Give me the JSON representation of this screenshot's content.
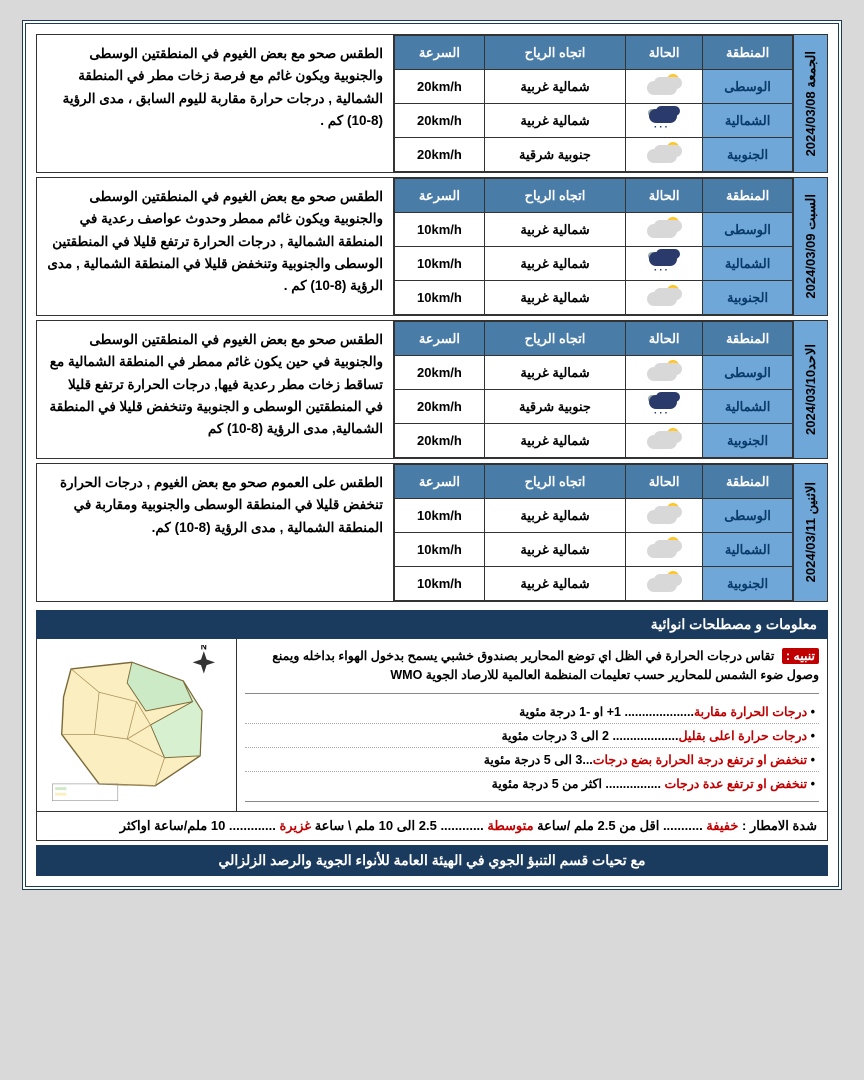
{
  "headers": {
    "region": "المنطقة",
    "condition": "الحالة",
    "wind": "اتجاه الرياح",
    "speed": "السرعة"
  },
  "regions": {
    "c": "الوسطى",
    "n": "الشمالية",
    "s": "الجنوبية"
  },
  "days": [
    {
      "date": "الجمعة 2024/03/08",
      "desc": "الطقس صحو مع بعض الغيوم في المنطقتين الوسطى والجنوبية ويكون غائم مع فرصة زخات مطر في المنطقة الشمالية , درجات حرارة مقاربة لليوم السابق ، مدى الرؤية (8-10) كم .",
      "rows": [
        {
          "r": "c",
          "icon": "sun",
          "wind": "شمالية غربية",
          "spd": "20km/h"
        },
        {
          "r": "n",
          "icon": "rain",
          "wind": "شمالية غربية",
          "spd": "20km/h"
        },
        {
          "r": "s",
          "icon": "sun",
          "wind": "جنوبية شرقية",
          "spd": "20km/h"
        }
      ]
    },
    {
      "date": "السبت 2024/03/09",
      "desc": "الطقس صحو مع بعض الغيوم  في المنطقتين الوسطى والجنوبية ويكون غائم ممطر وحدوث عواصف رعدية في المنطقة الشمالية , درجات الحرارة ترتفع قليلا  في المنطقتين الوسطى والجنوبية  وتنخفض قليلا في المنطقة الشمالية  , مدى الرؤية (8-10) كم .",
      "rows": [
        {
          "r": "c",
          "icon": "sun",
          "wind": "شمالية غربية",
          "spd": "10km/h"
        },
        {
          "r": "n",
          "icon": "rain",
          "wind": "شمالية غربية",
          "spd": "10km/h"
        },
        {
          "r": "s",
          "icon": "sun",
          "wind": "شمالية غربية",
          "spd": "10km/h"
        }
      ]
    },
    {
      "date": "الاحد2024/03/10",
      "desc": "الطقس صحو مع بعض الغيوم  في المنطقتين الوسطى والجنوبية في حين يكون غائم ممطر في المنطقة الشمالية مع تساقط زخات مطر رعدية فيها, درجات الحرارة ترتفع قليلا في المنطقتين الوسطى و الجنوبية وتنخفض قليلا في المنطقة الشمالية, مدى الرؤية (8-10) كم",
      "rows": [
        {
          "r": "c",
          "icon": "sun",
          "wind": "شمالية غربية",
          "spd": "20km/h"
        },
        {
          "r": "n",
          "icon": "rain",
          "wind": "جنوبية شرقية",
          "spd": "20km/h"
        },
        {
          "r": "s",
          "icon": "sun",
          "wind": "شمالية غربية",
          "spd": "20km/h"
        }
      ]
    },
    {
      "date": "الاثنين 2024/03/11",
      "desc": "الطقس على العموم صحو مع بعض الغيوم , درجات الحرارة تنخفض قليلا في المنطقة الوسطى والجنوبية ومقاربة  في المنطقة الشمالية  , مدى الرؤية (8-10) كم.",
      "rows": [
        {
          "r": "c",
          "icon": "sun",
          "wind": "شمالية غربية",
          "spd": "10km/h"
        },
        {
          "r": "n",
          "icon": "sun",
          "wind": "شمالية غربية",
          "spd": "10km/h"
        },
        {
          "r": "s",
          "icon": "sun",
          "wind": "شمالية غربية",
          "spd": "10km/h"
        }
      ]
    }
  ],
  "info_title": "معلومات و مصطلحات انوائية",
  "alert_tag": "تنبيه :",
  "alert_text": "تقاس درجات الحرارة في الظل اي توضع المحارير بصندوق خشبي يسمح بدخول الهواء بداخله ويمنع وصول ضوء الشمس للمحارير حسب تعليمات المنظمة العالمية للارصاد الجوية WMO",
  "bullets": [
    {
      "red": "درجات الحرارة مقاربة",
      "rest": ".................... 1+  او -1 درجة مئوية"
    },
    {
      "red": "درجات حرارة اعلى بقليل",
      "rest": "...................  2  الى   3 درجات مئوية"
    },
    {
      "red": "تنخفض او ترتفع درجة الحرارة بضع درجات",
      "rest": "...3  الى   5 درجة مئوية"
    },
    {
      "red": "تنخفض او ترتفع عدة درجات",
      "rest": " ................  اكثر من 5 درجة مئوية"
    }
  ],
  "rain_label": "شدة الامطار :",
  "rain_items": [
    {
      "k": "خفيفة",
      "v": " ........... اقل من 2.5  ملم /ساعة    "
    },
    {
      "k": "متوسطة",
      "v": " ............ 2.5 الى 10 ملم \\ ساعة    "
    },
    {
      "k": "غزيرة",
      "v": " .............  10 ملم/ساعة اواكثر"
    }
  ],
  "footer": "مع تحيات قسم التنبؤ الجوي في الهيئة العامة للأنواء الجوية والرصد الزلزالي"
}
